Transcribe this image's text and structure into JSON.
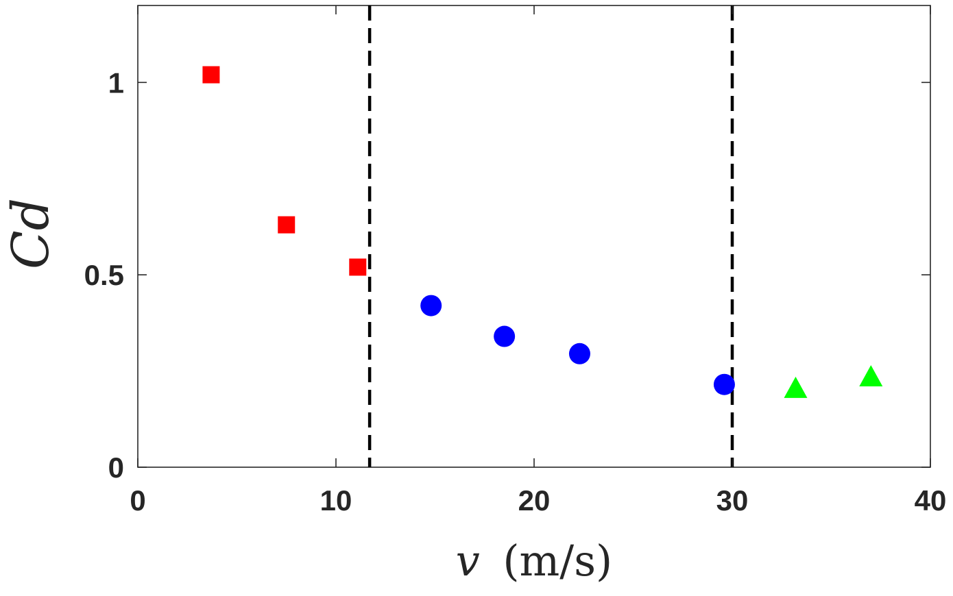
{
  "chart_data": {
    "type": "scatter",
    "title": "",
    "xlabel": "v (m/s)",
    "xlabel_var": "v",
    "xlabel_unit": "(m/s)",
    "ylabel": "Cd",
    "xlim": [
      0,
      40
    ],
    "ylim": [
      0,
      1.2
    ],
    "x_ticks": [
      0,
      10,
      20,
      30,
      40
    ],
    "x_tick_labels": [
      "0",
      "10",
      "20",
      "30",
      "40"
    ],
    "y_ticks": [
      0,
      0.5,
      1
    ],
    "y_tick_labels": [
      "0",
      "0.5",
      "1"
    ],
    "grid": false,
    "legend": "none",
    "series": [
      {
        "marker": "square",
        "color": "#ff0000",
        "points": [
          {
            "x": 3.7,
            "y": 1.02
          },
          {
            "x": 7.5,
            "y": 0.63
          },
          {
            "x": 11.1,
            "y": 0.52
          }
        ]
      },
      {
        "marker": "circle",
        "color": "#0000ff",
        "points": [
          {
            "x": 14.8,
            "y": 0.42
          },
          {
            "x": 18.5,
            "y": 0.34
          },
          {
            "x": 22.3,
            "y": 0.295
          },
          {
            "x": 29.6,
            "y": 0.215
          }
        ]
      },
      {
        "marker": "triangle",
        "color": "#00ff00",
        "points": [
          {
            "x": 33.2,
            "y": 0.205
          },
          {
            "x": 37.0,
            "y": 0.235
          }
        ]
      }
    ],
    "vlines": [
      {
        "x": 11.7,
        "style": "dashed",
        "color": "#000000"
      },
      {
        "x": 30.0,
        "style": "dashed",
        "color": "#000000"
      }
    ]
  }
}
